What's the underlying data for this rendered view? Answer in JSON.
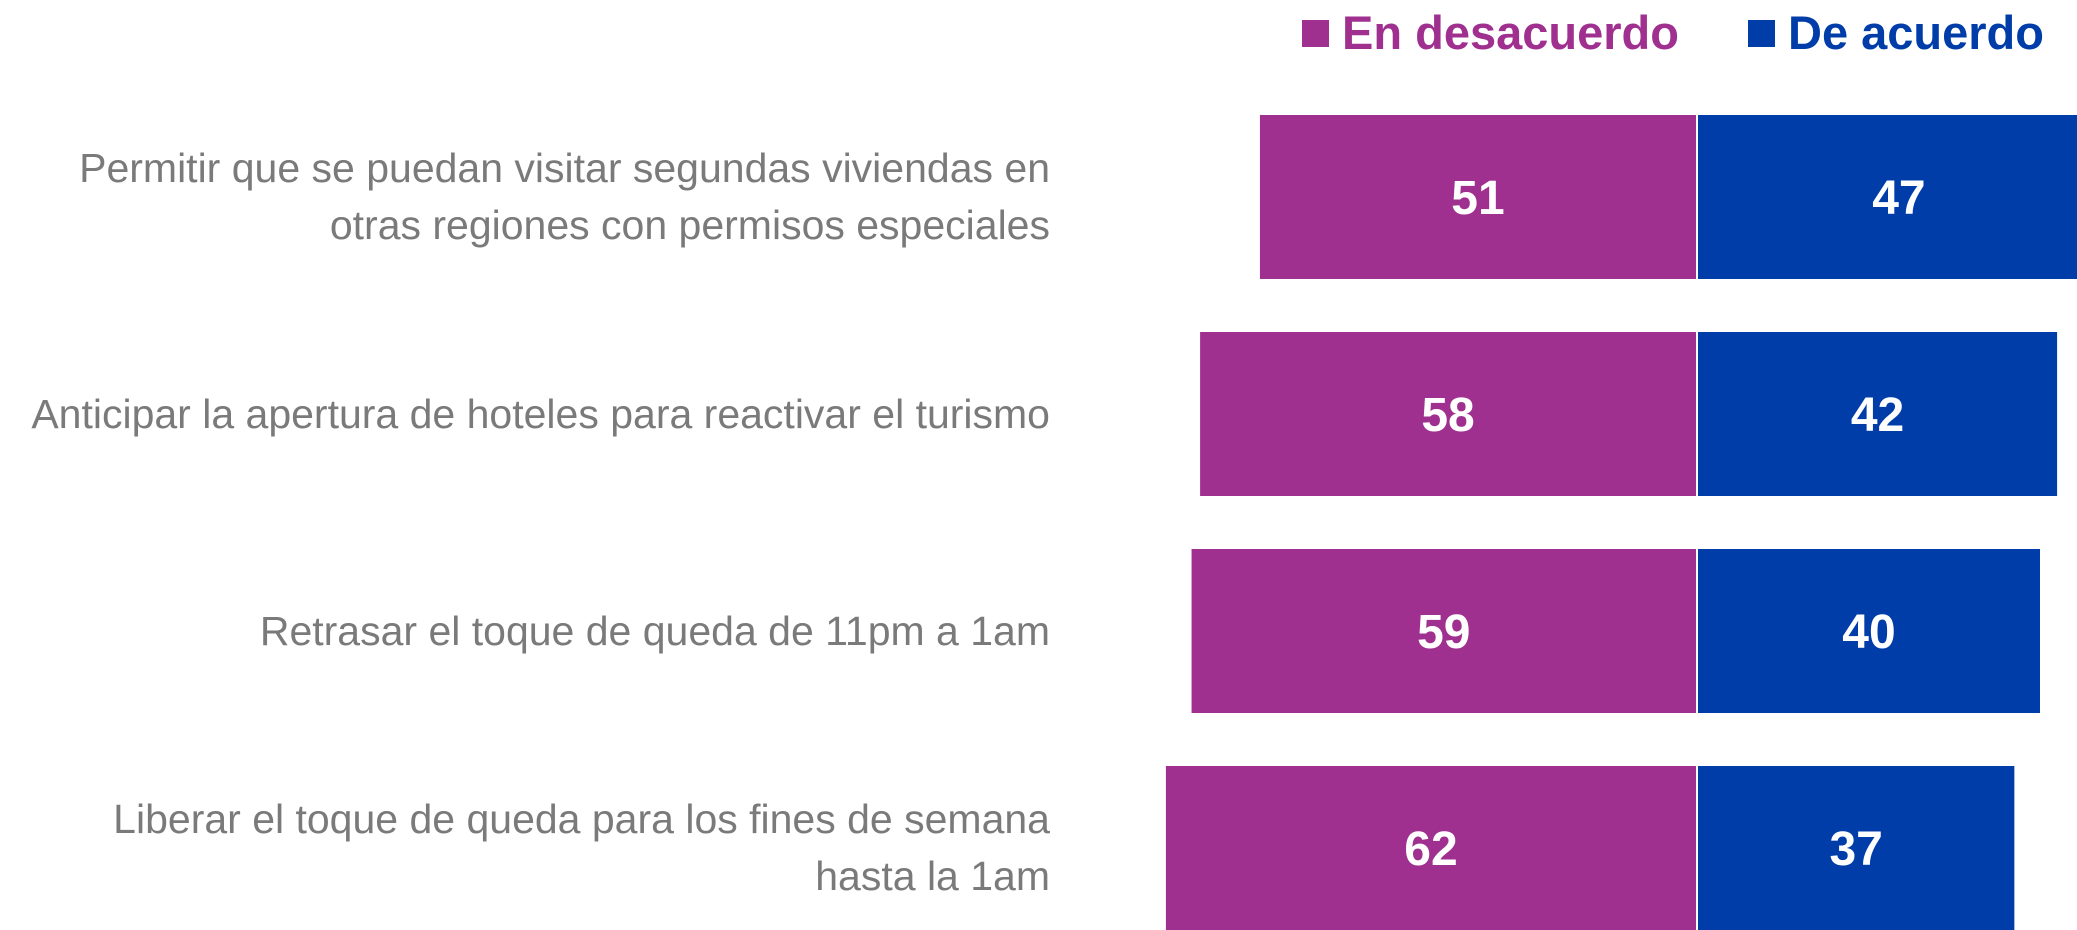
{
  "chart_data": {
    "type": "diverging_bar",
    "categories": [
      "Permitir que se puedan visitar segundas viviendas en otras regiones con permisos especiales",
      "Anticipar la apertura de hoteles para reactivar el turismo",
      "Retrasar el toque de queda de 11pm a 1am",
      "Liberar el toque de queda para los fines de semana hasta la 1am"
    ],
    "series": [
      {
        "name": "En desacuerdo",
        "color": "#a0308f",
        "values": [
          51,
          58,
          59,
          62
        ]
      },
      {
        "name": "De acuerdo",
        "color": "#003da8",
        "values": [
          47,
          42,
          40,
          37
        ]
      }
    ],
    "legend": "top-right"
  }
}
